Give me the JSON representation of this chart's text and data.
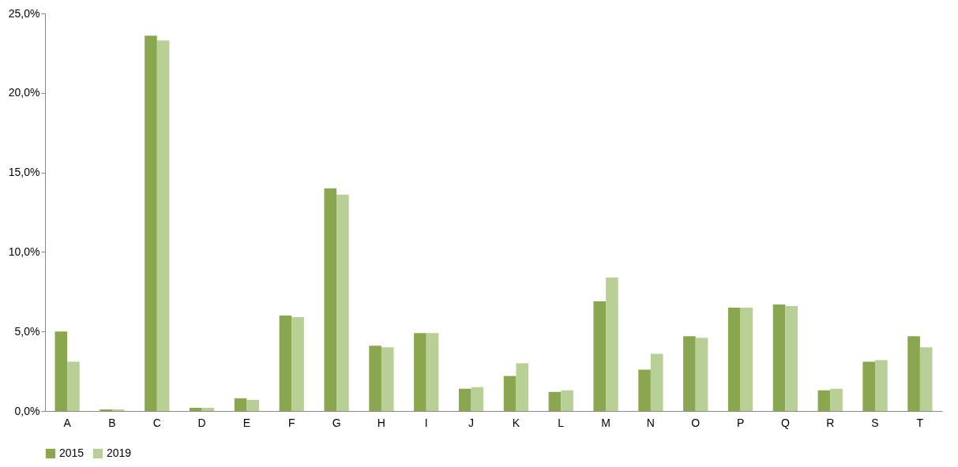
{
  "chart_data": {
    "type": "bar",
    "categories": [
      "A",
      "B",
      "C",
      "D",
      "E",
      "F",
      "G",
      "H",
      "I",
      "J",
      "K",
      "L",
      "M",
      "N",
      "O",
      "P",
      "Q",
      "R",
      "S",
      "T"
    ],
    "series": [
      {
        "name": "2015",
        "color": "#8aa64e",
        "values": [
          5.0,
          0.1,
          23.6,
          0.2,
          0.8,
          6.0,
          14.0,
          4.1,
          4.9,
          1.4,
          2.2,
          1.2,
          6.9,
          2.6,
          4.7,
          6.5,
          6.7,
          1.3,
          3.1,
          4.7
        ]
      },
      {
        "name": "2019",
        "color": "#b8d096",
        "values": [
          3.1,
          0.1,
          23.3,
          0.2,
          0.7,
          5.9,
          13.6,
          4.0,
          4.9,
          1.5,
          3.0,
          1.3,
          8.4,
          3.6,
          4.6,
          6.5,
          6.6,
          1.4,
          3.2,
          4.0
        ]
      }
    ],
    "ylim": [
      0,
      25
    ],
    "yticks": [
      {
        "value": 0,
        "label": "0,0%"
      },
      {
        "value": 5,
        "label": "5,0%"
      },
      {
        "value": 10,
        "label": "10,0%"
      },
      {
        "value": 15,
        "label": "15,0%"
      },
      {
        "value": 20,
        "label": "20,0%"
      },
      {
        "value": 25,
        "label": "25,0%"
      }
    ],
    "grid": false,
    "legend": "bottom"
  }
}
